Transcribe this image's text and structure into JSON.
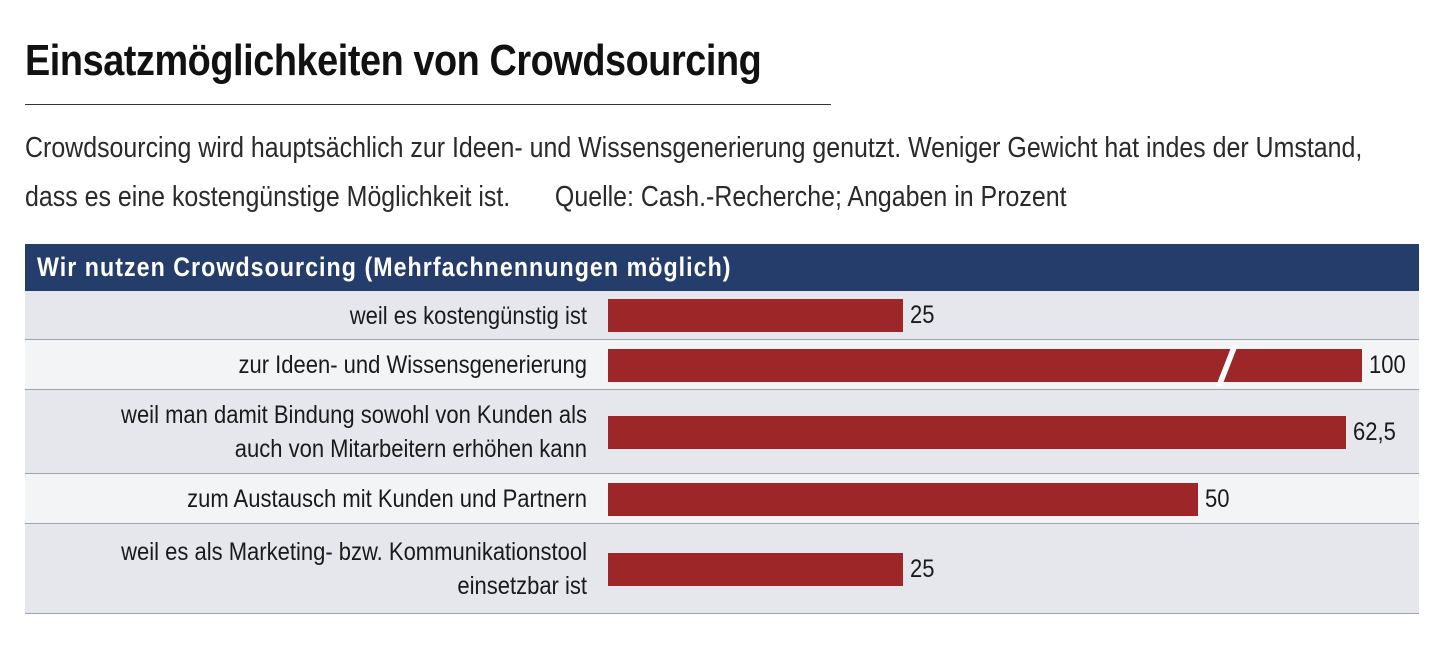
{
  "title": "Einsatzmöglichkeiten von Crowdsourcing",
  "subtitle_line1": "Crowdsourcing wird hauptsächlich zur Ideen- und Wissensgenerierung genutzt. Weniger Gewicht hat indes der Umstand,",
  "subtitle_line2": "dass es eine kostengünstige Möglichkeit ist.",
  "source": "Quelle: Cash.-Recherche; Angaben in Prozent",
  "colors": {
    "bar": "#9d2629",
    "header": "#243d6b",
    "row_shade": "#e5e7ec"
  },
  "chart_data": {
    "type": "bar",
    "orientation": "horizontal",
    "title": "Wir nutzen Crowdsourcing (Mehrfachnennungen möglich)",
    "unit": "Prozent",
    "categories": [
      [
        "weil es kostengünstig ist"
      ],
      [
        "zur Ideen- und Wissensgenerierung"
      ],
      [
        "weil man damit Bindung sowohl von Kunden als",
        "auch von Mitarbeitern erhöhen kann"
      ],
      [
        "zum Austausch mit Kunden und Partnern"
      ],
      [
        "weil es als Marketing- bzw. Kommunikationstool",
        "einsetzbar ist"
      ]
    ],
    "values": [
      25,
      100,
      62.5,
      50,
      25
    ],
    "value_labels": [
      "25",
      "100",
      "62,5",
      "50",
      "25"
    ],
    "axis_break": "100"
  }
}
